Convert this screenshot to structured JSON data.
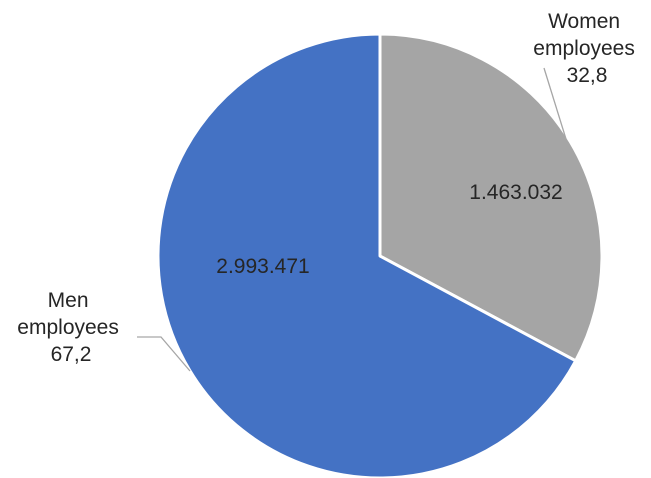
{
  "chart_data": {
    "type": "pie",
    "title": "",
    "categories": [
      "Women employees",
      "Men employees"
    ],
    "values": [
      1463032,
      2993471
    ],
    "value_labels": [
      "1.463.032",
      "2.993.471"
    ],
    "percent_labels": [
      "32,8",
      "67,2"
    ],
    "outside_labels": [
      [
        "Women",
        "employees",
        "32,8"
      ],
      [
        "Men",
        "employees",
        "67,2"
      ]
    ],
    "colors": [
      "#a5a5a5",
      "#4472c4"
    ],
    "start_angle_deg": 0,
    "direction": "clockwise",
    "legend": "none"
  }
}
